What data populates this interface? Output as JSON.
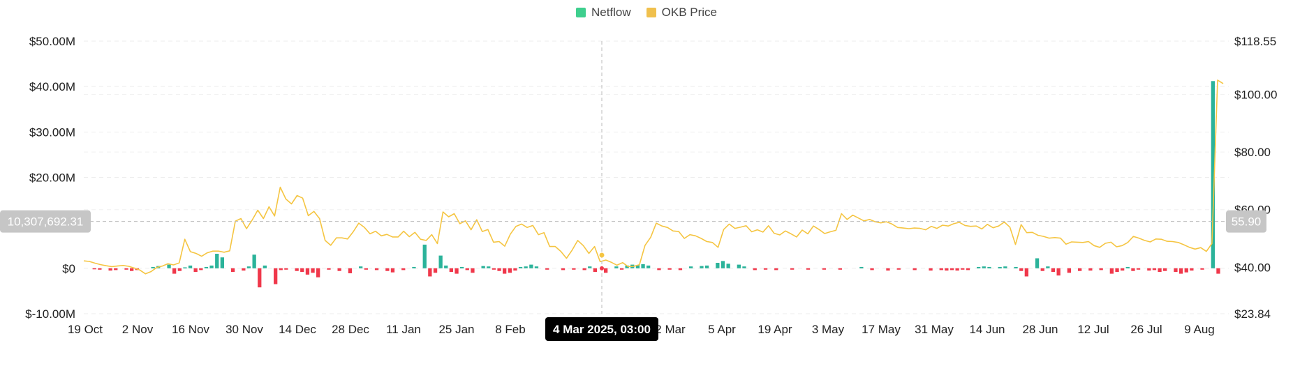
{
  "chart_data": {
    "type": "bar+line",
    "legend": [
      {
        "name": "Netflow",
        "color": "#3ecf8e"
      },
      {
        "name": "OKB Price",
        "color": "#f0c04d"
      }
    ],
    "colors": {
      "netflow_positive": "#2bb39a",
      "netflow_negative": "#f0384b",
      "price_line": "#f5c542",
      "last_bar": "#2bb39a"
    },
    "x_tick_labels": [
      "19 Oct",
      "2 Nov",
      "16 Nov",
      "30 Nov",
      "14 Dec",
      "28 Dec",
      "11 Jan",
      "25 Jan",
      "8 Feb",
      "2 Mar",
      "5 Apr",
      "19 Apr",
      "3 May",
      "17 May",
      "31 May",
      "14 Jun",
      "28 Jun",
      "12 Jul",
      "26 Jul",
      "9 Aug"
    ],
    "y_left_tick_labels": [
      "$50.00M",
      "$40.00M",
      "$30.00M",
      "$20.00M",
      "$0",
      "$-10.00M"
    ],
    "y_right_tick_labels": [
      "$118.55",
      "$100.00",
      "$80.00",
      "$60.00",
      "$40.00",
      "$23.84"
    ],
    "y_left_range": [
      -10000000,
      50000000
    ],
    "y_right_range": [
      23.84,
      118.55
    ],
    "crosshair": {
      "date_label": "4 Mar 2025, 03:00",
      "left_value_label": "10,307,692.31",
      "right_value_label": "55.90"
    },
    "grid": true,
    "legend_position": "top-center",
    "netflow": [
      0.0,
      0.0,
      -0.2,
      -0.3,
      0.0,
      -0.5,
      -0.4,
      0.0,
      -0.3,
      -0.6,
      -0.4,
      0.0,
      0.0,
      0.3,
      0.5,
      0.0,
      0.8,
      -1.2,
      -0.6,
      0.2,
      0.6,
      -0.8,
      -0.4,
      0.3,
      0.6,
      3.2,
      2.4,
      0.0,
      -0.8,
      0.0,
      -0.5,
      0.4,
      3.0,
      -4.2,
      0.6,
      0.0,
      -3.5,
      -0.4,
      -0.3,
      0.0,
      -0.6,
      -0.8,
      -1.4,
      -1.0,
      -2.0,
      0.0,
      -0.3,
      0.0,
      -0.6,
      0.0,
      -1.1,
      0.0,
      0.4,
      -0.3,
      0.0,
      -0.4,
      0.0,
      -0.6,
      -0.9,
      0.0,
      -0.4,
      0.0,
      0.3,
      0.0,
      5.2,
      -1.8,
      -1.0,
      2.8,
      0.6,
      -0.8,
      -1.2,
      0.3,
      -0.4,
      -1.0,
      0.0,
      0.5,
      0.4,
      -0.3,
      -0.6,
      -1.2,
      -1.0,
      -0.5,
      0.3,
      0.4,
      0.8,
      0.4,
      0.0,
      -0.3,
      0.0,
      0.0,
      -0.4,
      0.0,
      -0.3,
      0.0,
      -0.4,
      0.4,
      -0.8,
      0.0,
      -1.0,
      0.0,
      0.4,
      -0.3,
      0.6,
      0.8,
      0.7,
      0.9,
      0.6,
      0.0,
      -0.4,
      0.0,
      -0.3,
      0.0,
      -0.4,
      0.0,
      0.4,
      0.0,
      0.5,
      0.6,
      0.0,
      1.2,
      1.6,
      1.0,
      0.0,
      0.8,
      0.4,
      0.0,
      -0.4,
      0.0,
      -0.3,
      0.0,
      -0.4,
      0.0,
      0.0,
      -0.3,
      0.0,
      0.0,
      -0.3,
      0.0,
      0.0,
      -0.3,
      0.0,
      0.0,
      -0.3,
      0.0,
      0.0,
      0.0,
      0.3,
      0.0,
      -0.4,
      0.0,
      0.0,
      -0.5,
      0.0,
      -0.3,
      0.0,
      0.0,
      -0.4,
      0.0,
      0.0,
      -0.5,
      0.0,
      -0.4,
      -0.5,
      -0.4,
      -0.5,
      -0.3,
      -0.4,
      0.0,
      0.3,
      0.4,
      0.3,
      0.0,
      0.3,
      0.4,
      0.0,
      0.3,
      -0.6,
      -1.8,
      0.0,
      2.2,
      -0.6,
      0.4,
      -0.8,
      -1.6,
      0.0,
      -1.0,
      0.0,
      -0.6,
      0.0,
      -0.5,
      0.0,
      -0.4,
      0.0,
      -1.2,
      -0.8,
      -0.5,
      0.3,
      -0.6,
      -0.3,
      0.0,
      -0.5,
      -0.4,
      -0.8,
      -0.6,
      0.0,
      -0.8,
      -1.2,
      -0.9,
      -0.5,
      0.0,
      -0.3,
      0.0,
      41.2,
      -1.2
    ],
    "okb_price": [
      42.2,
      42.0,
      41.4,
      40.9,
      40.5,
      40.2,
      40.4,
      40.6,
      40.3,
      39.7,
      39.0,
      37.7,
      38.5,
      39.9,
      40.4,
      41.2,
      40.8,
      41.5,
      49.7,
      45.4,
      44.8,
      43.8,
      45.0,
      45.6,
      45.6,
      45.2,
      45.7,
      56.0,
      56.9,
      53.4,
      56.4,
      59.8,
      56.9,
      61.0,
      57.8,
      67.8,
      63.7,
      62.0,
      64.9,
      64.0,
      57.9,
      59.4,
      56.9,
      49.3,
      47.6,
      50.2,
      50.2,
      49.8,
      52.3,
      55.3,
      53.8,
      51.6,
      52.5,
      50.9,
      51.4,
      50.5,
      50.5,
      52.5,
      50.6,
      52.1,
      49.7,
      49.3,
      51.3,
      48.2,
      59.2,
      57.5,
      58.6,
      55.1,
      56.1,
      53.0,
      56.5,
      52.4,
      53.1,
      48.7,
      48.9,
      47.3,
      51.5,
      54.2,
      55.0,
      53.8,
      54.5,
      51.3,
      52.0,
      47.2,
      47.2,
      45.5,
      43.1,
      45.9,
      49.3,
      47.5,
      44.8,
      47.2,
      41.9,
      42.5,
      41.7,
      40.7,
      41.6,
      40.2,
      40.3,
      40.9,
      47.6,
      50.4,
      55.3,
      54.3,
      53.8,
      52.6,
      52.4,
      50.0,
      51.3,
      50.9,
      50.0,
      48.9,
      48.6,
      46.9,
      53.1,
      55.0,
      53.5,
      53.9,
      54.4,
      52.3,
      53.0,
      52.2,
      54.4,
      51.8,
      51.2,
      52.6,
      51.6,
      50.5,
      52.9,
      51.6,
      54.3,
      53.1,
      51.7,
      52.3,
      52.8,
      58.6,
      56.6,
      58.1,
      57.1,
      56.1,
      56.6,
      55.8,
      55.4,
      55.8,
      55.0,
      53.8,
      53.6,
      53.4,
      53.6,
      53.5,
      53.0,
      54.2,
      53.5,
      54.6,
      54.3,
      55.1,
      55.6,
      54.5,
      54.2,
      54.3,
      53.3,
      54.9,
      53.7,
      54.3,
      55.7,
      53.9,
      47.9,
      54.8,
      52.0,
      52.1,
      51.1,
      50.7,
      50.1,
      50.3,
      50.1,
      48.0,
      48.8,
      48.7,
      48.6,
      48.9,
      47.5,
      46.9,
      48.3,
      48.7,
      47.1,
      47.5,
      48.6,
      50.7,
      50.1,
      49.3,
      48.8,
      49.8,
      49.7,
      49.0,
      48.9,
      48.6,
      47.8,
      46.9,
      46.3,
      46.8,
      45.5,
      48.2,
      105.0,
      103.8
    ]
  }
}
